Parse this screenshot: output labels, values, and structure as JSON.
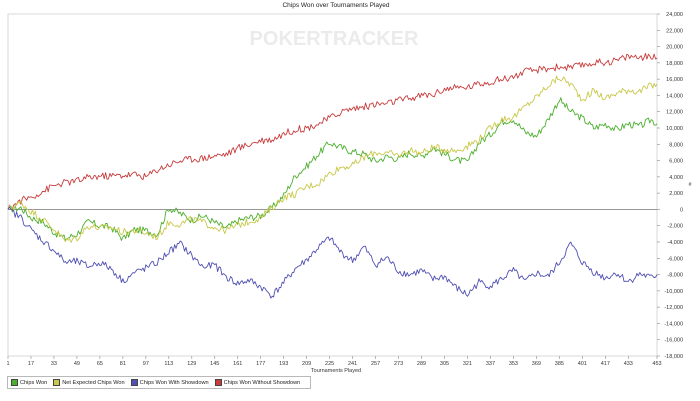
{
  "chart_data": {
    "type": "line",
    "title": "Chips Won over Tournaments Played",
    "xlabel": "Tournaments Played",
    "ylabel": "",
    "watermark": "POKERTRACKER",
    "x_ticks": [
      "1",
      "17",
      "33",
      "49",
      "65",
      "81",
      "97",
      "113",
      "129",
      "145",
      "161",
      "177",
      "193",
      "209",
      "225",
      "241",
      "257",
      "273",
      "289",
      "305",
      "321",
      "337",
      "353",
      "369",
      "385",
      "401",
      "417",
      "433",
      "453"
    ],
    "y_ticks": [
      "24,000",
      "22,000",
      "20,000",
      "18,000",
      "16,000",
      "14,000",
      "12,000",
      "10,000",
      "8,000",
      "6,000",
      "4,000",
      "2,000",
      "0",
      "-2,000",
      "-4,000",
      "-6,000",
      "-8,000",
      "-10,000",
      "-12,000",
      "-14,000",
      "-16,000",
      "-18,000"
    ],
    "ylim": [
      -18000,
      24000
    ],
    "xlim": [
      1,
      453
    ],
    "grid": false,
    "legend_position": "bottom-left",
    "series": [
      {
        "name": "Chips Won",
        "color": "#4caf2e",
        "points": [
          [
            1,
            0
          ],
          [
            10,
            200
          ],
          [
            17,
            -1000
          ],
          [
            25,
            -1500
          ],
          [
            33,
            -2800
          ],
          [
            41,
            -3600
          ],
          [
            49,
            -3000
          ],
          [
            57,
            -1500
          ],
          [
            65,
            -2000
          ],
          [
            73,
            -2200
          ],
          [
            81,
            -3600
          ],
          [
            89,
            -2500
          ],
          [
            97,
            -2600
          ],
          [
            105,
            -3000
          ],
          [
            113,
            200
          ],
          [
            121,
            -500
          ],
          [
            129,
            -1300
          ],
          [
            137,
            -800
          ],
          [
            145,
            -1600
          ],
          [
            153,
            -2300
          ],
          [
            161,
            -1400
          ],
          [
            169,
            -1000
          ],
          [
            177,
            -800
          ],
          [
            185,
            200
          ],
          [
            193,
            1700
          ],
          [
            201,
            4100
          ],
          [
            209,
            5300
          ],
          [
            217,
            6800
          ],
          [
            225,
            8200
          ],
          [
            233,
            7600
          ],
          [
            241,
            7100
          ],
          [
            249,
            6800
          ],
          [
            257,
            5900
          ],
          [
            265,
            6500
          ],
          [
            273,
            6200
          ],
          [
            281,
            7000
          ],
          [
            289,
            6500
          ],
          [
            297,
            7600
          ],
          [
            305,
            6800
          ],
          [
            313,
            6100
          ],
          [
            321,
            5800
          ],
          [
            329,
            8200
          ],
          [
            337,
            9200
          ],
          [
            345,
            10800
          ],
          [
            353,
            11100
          ],
          [
            361,
            9500
          ],
          [
            369,
            9000
          ],
          [
            377,
            11000
          ],
          [
            385,
            13500
          ],
          [
            393,
            12000
          ],
          [
            401,
            11200
          ],
          [
            409,
            10000
          ],
          [
            417,
            10500
          ],
          [
            425,
            9800
          ],
          [
            433,
            10500
          ],
          [
            441,
            10200
          ],
          [
            449,
            11000
          ],
          [
            453,
            10500
          ]
        ]
      },
      {
        "name": "Net Expected Chips Won",
        "color": "#c8c84b",
        "points": [
          [
            1,
            0
          ],
          [
            10,
            800
          ],
          [
            17,
            -200
          ],
          [
            25,
            -1200
          ],
          [
            33,
            -2400
          ],
          [
            41,
            -3900
          ],
          [
            49,
            -3500
          ],
          [
            57,
            -2000
          ],
          [
            65,
            -2300
          ],
          [
            73,
            -2200
          ],
          [
            81,
            -2800
          ],
          [
            89,
            -2600
          ],
          [
            97,
            -2900
          ],
          [
            105,
            -3400
          ],
          [
            113,
            -1600
          ],
          [
            121,
            -1800
          ],
          [
            129,
            -1200
          ],
          [
            137,
            -1600
          ],
          [
            145,
            -2200
          ],
          [
            153,
            -2600
          ],
          [
            161,
            -1900
          ],
          [
            169,
            -1500
          ],
          [
            177,
            -1000
          ],
          [
            185,
            200
          ],
          [
            193,
            1500
          ],
          [
            201,
            1900
          ],
          [
            209,
            2800
          ],
          [
            217,
            3200
          ],
          [
            225,
            4400
          ],
          [
            233,
            5200
          ],
          [
            241,
            5400
          ],
          [
            249,
            6400
          ],
          [
            257,
            7000
          ],
          [
            265,
            6900
          ],
          [
            273,
            6600
          ],
          [
            281,
            7300
          ],
          [
            289,
            6900
          ],
          [
            297,
            7600
          ],
          [
            305,
            7400
          ],
          [
            313,
            7200
          ],
          [
            321,
            7800
          ],
          [
            329,
            8600
          ],
          [
            337,
            10000
          ],
          [
            345,
            11100
          ],
          [
            353,
            11300
          ],
          [
            361,
            12600
          ],
          [
            369,
            13800
          ],
          [
            377,
            15200
          ],
          [
            385,
            16200
          ],
          [
            393,
            15400
          ],
          [
            401,
            13500
          ],
          [
            409,
            14600
          ],
          [
            417,
            13600
          ],
          [
            425,
            14300
          ],
          [
            433,
            14700
          ],
          [
            441,
            14500
          ],
          [
            449,
            15200
          ],
          [
            453,
            15400
          ]
        ]
      },
      {
        "name": "Chips Won With Showdown",
        "color": "#5050b4",
        "points": [
          [
            1,
            0
          ],
          [
            10,
            -1000
          ],
          [
            17,
            -2500
          ],
          [
            25,
            -3800
          ],
          [
            33,
            -5000
          ],
          [
            41,
            -6500
          ],
          [
            49,
            -6400
          ],
          [
            57,
            -7000
          ],
          [
            65,
            -6500
          ],
          [
            73,
            -7300
          ],
          [
            81,
            -8800
          ],
          [
            89,
            -7800
          ],
          [
            97,
            -7200
          ],
          [
            105,
            -6500
          ],
          [
            113,
            -5200
          ],
          [
            121,
            -4200
          ],
          [
            129,
            -5700
          ],
          [
            137,
            -7100
          ],
          [
            145,
            -6800
          ],
          [
            153,
            -8300
          ],
          [
            161,
            -9100
          ],
          [
            169,
            -8700
          ],
          [
            177,
            -9500
          ],
          [
            185,
            -10600
          ],
          [
            193,
            -9000
          ],
          [
            201,
            -7300
          ],
          [
            209,
            -6200
          ],
          [
            217,
            -4700
          ],
          [
            225,
            -3500
          ],
          [
            233,
            -5300
          ],
          [
            241,
            -6300
          ],
          [
            249,
            -4600
          ],
          [
            257,
            -6800
          ],
          [
            265,
            -5900
          ],
          [
            273,
            -7600
          ],
          [
            281,
            -8000
          ],
          [
            289,
            -7500
          ],
          [
            297,
            -8600
          ],
          [
            305,
            -8200
          ],
          [
            313,
            -9600
          ],
          [
            321,
            -10500
          ],
          [
            329,
            -8900
          ],
          [
            337,
            -9400
          ],
          [
            345,
            -8500
          ],
          [
            353,
            -7500
          ],
          [
            361,
            -8900
          ],
          [
            369,
            -7800
          ],
          [
            377,
            -8300
          ],
          [
            385,
            -6500
          ],
          [
            393,
            -4200
          ],
          [
            401,
            -6500
          ],
          [
            409,
            -7700
          ],
          [
            417,
            -8400
          ],
          [
            425,
            -7800
          ],
          [
            433,
            -8900
          ],
          [
            441,
            -7900
          ],
          [
            449,
            -8400
          ],
          [
            453,
            -8000
          ]
        ]
      },
      {
        "name": "Chips Won Without Showdown",
        "color": "#c83c3c",
        "points": [
          [
            1,
            0
          ],
          [
            10,
            1100
          ],
          [
            17,
            1500
          ],
          [
            25,
            2200
          ],
          [
            33,
            2900
          ],
          [
            41,
            3300
          ],
          [
            49,
            3500
          ],
          [
            57,
            3900
          ],
          [
            65,
            4100
          ],
          [
            73,
            4100
          ],
          [
            81,
            4200
          ],
          [
            89,
            4300
          ],
          [
            97,
            4000
          ],
          [
            105,
            4900
          ],
          [
            113,
            5500
          ],
          [
            121,
            6000
          ],
          [
            129,
            6200
          ],
          [
            137,
            6300
          ],
          [
            145,
            6600
          ],
          [
            153,
            6800
          ],
          [
            161,
            7500
          ],
          [
            169,
            8000
          ],
          [
            177,
            8500
          ],
          [
            185,
            8600
          ],
          [
            193,
            9300
          ],
          [
            201,
            9800
          ],
          [
            209,
            10000
          ],
          [
            217,
            10500
          ],
          [
            225,
            11200
          ],
          [
            233,
            12000
          ],
          [
            241,
            12400
          ],
          [
            249,
            12600
          ],
          [
            257,
            12900
          ],
          [
            265,
            13000
          ],
          [
            273,
            13400
          ],
          [
            281,
            13600
          ],
          [
            289,
            14000
          ],
          [
            297,
            14100
          ],
          [
            305,
            14800
          ],
          [
            313,
            14900
          ],
          [
            321,
            15000
          ],
          [
            329,
            15400
          ],
          [
            337,
            15700
          ],
          [
            345,
            16000
          ],
          [
            353,
            16300
          ],
          [
            361,
            16900
          ],
          [
            369,
            17100
          ],
          [
            377,
            17300
          ],
          [
            385,
            17500
          ],
          [
            393,
            17400
          ],
          [
            401,
            17700
          ],
          [
            409,
            18000
          ],
          [
            417,
            18100
          ],
          [
            425,
            18300
          ],
          [
            433,
            18800
          ],
          [
            441,
            18700
          ],
          [
            449,
            18800
          ],
          [
            453,
            18600
          ]
        ]
      }
    ]
  }
}
